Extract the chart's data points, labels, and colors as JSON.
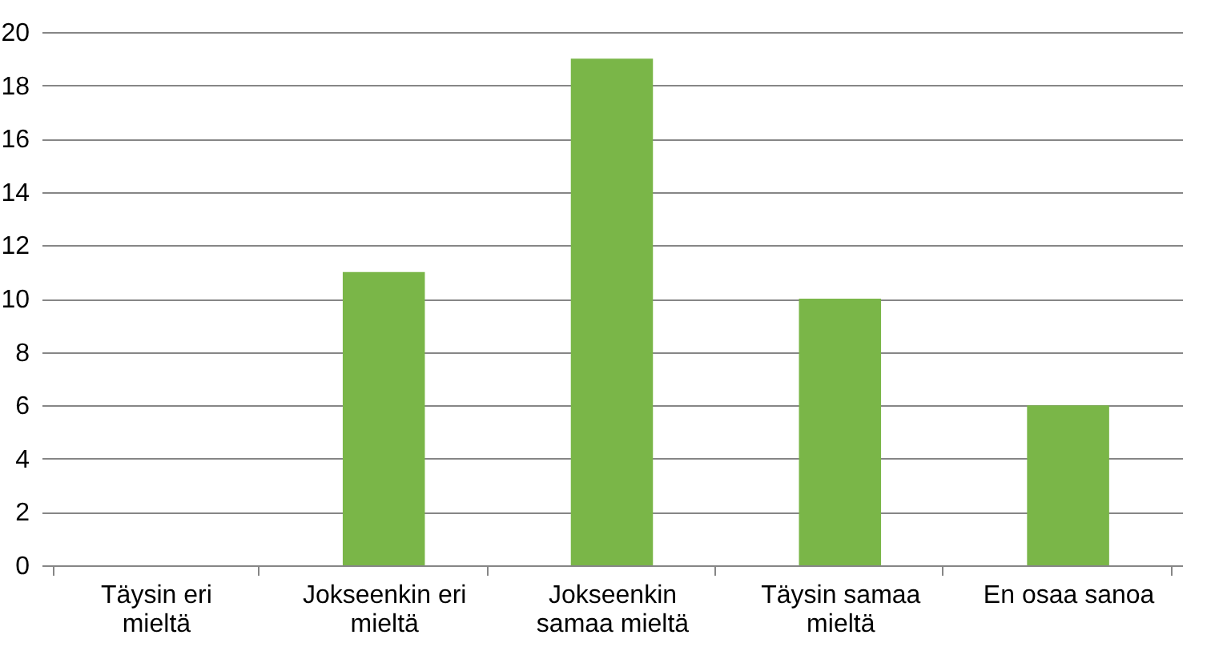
{
  "chart_data": {
    "type": "bar",
    "categories": [
      "Täysin eri mieltä",
      "Jokseenkin eri mieltä",
      "Jokseenkin samaa mieltä",
      "Täysin samaa mieltä",
      "En osaa sanoa"
    ],
    "values": [
      0,
      11,
      19,
      10,
      6
    ],
    "color": "#7ab648",
    "ylim": [
      0,
      20
    ],
    "yticks": [
      0,
      2,
      4,
      6,
      8,
      10,
      12,
      14,
      16,
      18,
      20
    ],
    "grid": "y"
  }
}
